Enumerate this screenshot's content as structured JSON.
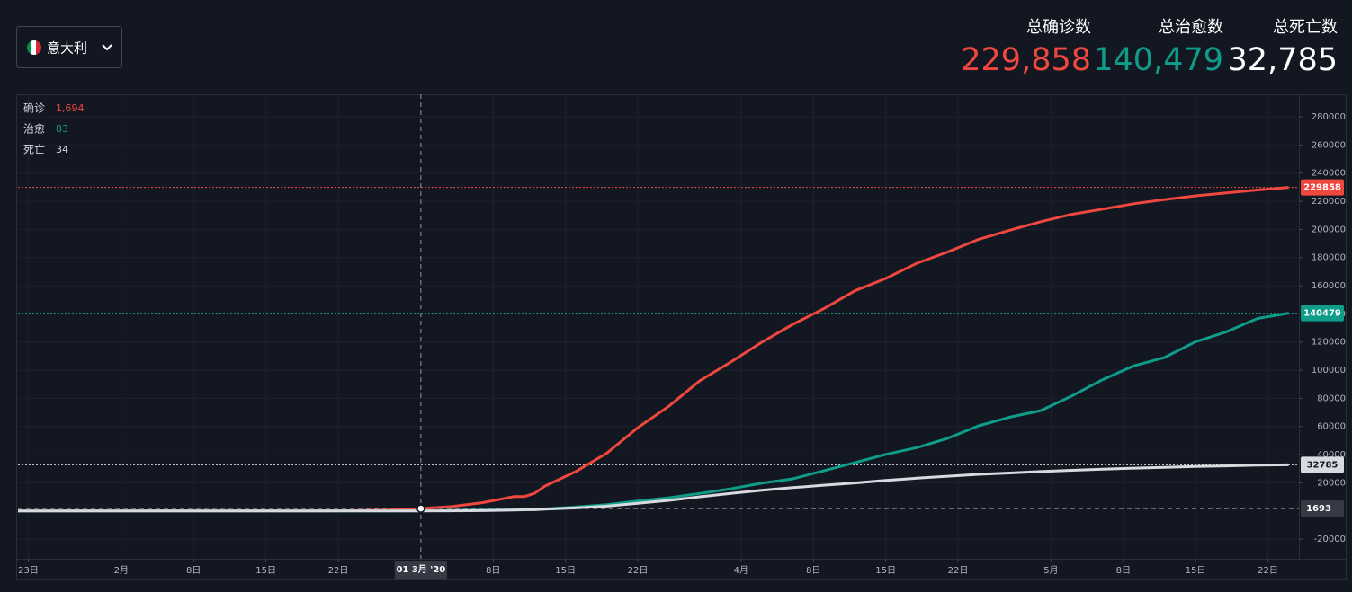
{
  "country": "意大利",
  "totals": [
    {
      "label": "总确诊数",
      "value": "229,858",
      "color": "#f0483e"
    },
    {
      "label": "总治愈数",
      "value": "140,479",
      "color": "#0f9d8a"
    },
    {
      "label": "总死亡数",
      "value": "32,785",
      "color": "#ffffff"
    }
  ],
  "chart_data": {
    "type": "line",
    "x": [
      "2020-01-22",
      "2020-01-31",
      "2020-02-21",
      "2020-02-24",
      "2020-02-27",
      "2020-03-01",
      "2020-03-04",
      "2020-03-07",
      "2020-03-10",
      "2020-03-11",
      "2020-03-12",
      "2020-03-13",
      "2020-03-16",
      "2020-03-19",
      "2020-03-22",
      "2020-03-25",
      "2020-03-28",
      "2020-03-31",
      "2020-04-03",
      "2020-04-06",
      "2020-04-09",
      "2020-04-12",
      "2020-04-15",
      "2020-04-18",
      "2020-04-21",
      "2020-04-24",
      "2020-04-27",
      "2020-04-30",
      "2020-05-03",
      "2020-05-06",
      "2020-05-09",
      "2020-05-12",
      "2020-05-15",
      "2020-05-18",
      "2020-05-21",
      "2020-05-24"
    ],
    "series": [
      {
        "name": "确诊",
        "color": "#f0483e",
        "values": [
          0,
          2,
          20,
          229,
          655,
          1694,
          3089,
          5883,
          10149,
          10149,
          12462,
          17660,
          27980,
          41035,
          59138,
          74386,
          92472,
          105792,
          119827,
          132547,
          143626,
          156363,
          165155,
          175925,
          183957,
          192994,
          199414,
          205463,
          210717,
          214457,
          218268,
          221216,
          223885,
          225886,
          228006,
          229858
        ]
      },
      {
        "name": "治愈",
        "color": "#0f9d8a",
        "values": [
          0,
          0,
          0,
          1,
          45,
          83,
          276,
          589,
          724,
          724,
          1045,
          1439,
          2749,
          4440,
          7024,
          9362,
          12384,
          15729,
          19758,
          22837,
          28470,
          34211,
          40164,
          44927,
          51600,
          60498,
          66624,
          71252,
          81654,
          93245,
          103031,
          109039,
          120205,
          127326,
          136720,
          140479
        ]
      },
      {
        "name": "死亡",
        "color": "#d9d9e0",
        "values": [
          0,
          0,
          1,
          7,
          17,
          34,
          107,
          233,
          631,
          827,
          827,
          1266,
          2158,
          3405,
          5476,
          7503,
          10023,
          12428,
          14681,
          16523,
          18279,
          19899,
          21645,
          23227,
          24648,
          25969,
          26977,
          27967,
          28884,
          29684,
          30395,
          30911,
          31610,
          32007,
          32486,
          32785
        ]
      }
    ],
    "xlim": [
      "2020-01-22",
      "2020-05-25"
    ],
    "xticks": [
      {
        "value": "2020-01-23",
        "label": "23日"
      },
      {
        "value": "2020-02-01",
        "label": "2月"
      },
      {
        "value": "2020-02-08",
        "label": "8日"
      },
      {
        "value": "2020-02-15",
        "label": "15日"
      },
      {
        "value": "2020-02-22",
        "label": "22日"
      },
      {
        "value": "2020-03-08",
        "label": "8日"
      },
      {
        "value": "2020-03-15",
        "label": "15日"
      },
      {
        "value": "2020-03-22",
        "label": "22日"
      },
      {
        "value": "2020-04-01",
        "label": "4月"
      },
      {
        "value": "2020-04-08",
        "label": "8日"
      },
      {
        "value": "2020-04-15",
        "label": "15日"
      },
      {
        "value": "2020-04-22",
        "label": "22日"
      },
      {
        "value": "2020-05-01",
        "label": "5月"
      },
      {
        "value": "2020-05-08",
        "label": "8日"
      },
      {
        "value": "2020-05-15",
        "label": "15日"
      },
      {
        "value": "2020-05-22",
        "label": "22日"
      }
    ],
    "ylim": [
      -34000,
      296000
    ],
    "yticks": [
      -20000,
      20000,
      40000,
      60000,
      80000,
      100000,
      120000,
      140000,
      160000,
      180000,
      200000,
      220000,
      240000,
      260000,
      280000
    ],
    "grid": true,
    "crosshair": {
      "x": {
        "value": "2020-03-01",
        "label": "01 3月 '20"
      },
      "y": 1693,
      "readout": [
        "1,694",
        "83",
        "34"
      ]
    }
  }
}
